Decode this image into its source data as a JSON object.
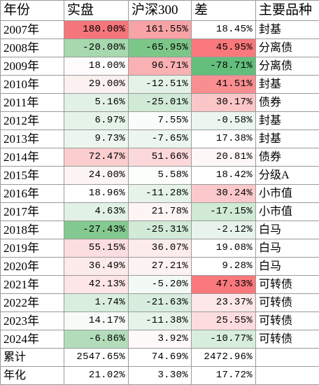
{
  "table": {
    "headers": [
      "年份",
      "实盘",
      "沪深300",
      "差",
      "主要品种"
    ],
    "rows": [
      {
        "year": "2007年",
        "actual": "180.00%",
        "csi300": "161.55%",
        "diff": "18.45%",
        "style": "封基",
        "bg": [
          "#f4767a",
          "#f8a3a6",
          "#ffffff"
        ]
      },
      {
        "year": "2008年",
        "actual": "-20.00%",
        "csi300": "-65.95%",
        "diff": "45.95%",
        "style": "分离债",
        "bg": [
          "#a8d8ae",
          "#7cc688",
          "#f9787c"
        ]
      },
      {
        "year": "2009年",
        "actual": "18.00%",
        "csi300": "96.71%",
        "diff": "-78.71%",
        "style": "分离债",
        "bg": [
          "#fdfbfb",
          "#fab1b4",
          "#63be7b"
        ]
      },
      {
        "year": "2010年",
        "actual": "29.00%",
        "csi300": "-12.51%",
        "diff": "41.51%",
        "style": "封基",
        "bg": [
          "#fcf0f1",
          "#e4f2e7",
          "#f98e91"
        ]
      },
      {
        "year": "2011年",
        "actual": "5.16%",
        "csi300": "-25.01%",
        "diff": "30.17%",
        "style": "债券",
        "bg": [
          "#e2f1e5",
          "#d0ead5",
          "#fbc6c8"
        ]
      },
      {
        "year": "2012年",
        "actual": "6.97%",
        "csi300": "7.55%",
        "diff": "-0.58%",
        "style": "封基",
        "bg": [
          "#e6f3e9",
          "#f9fcfa",
          "#ebf6ee"
        ]
      },
      {
        "year": "2013年",
        "actual": "9.73%",
        "csi300": "-7.65%",
        "diff": "17.38%",
        "style": "封基",
        "bg": [
          "#ecf6ef",
          "#ebf6ee",
          "#ffffff"
        ]
      },
      {
        "year": "2014年",
        "actual": "72.47%",
        "csi300": "51.66%",
        "diff": "20.81%",
        "style": "债券",
        "bg": [
          "#fbcdcf",
          "#fcd8da",
          "#fef7f7"
        ]
      },
      {
        "year": "2015年",
        "actual": "24.00%",
        "csi300": "5.58%",
        "diff": "18.42%",
        "style": "分级A",
        "bg": [
          "#fdf5f5",
          "#fcfefc",
          "#ffffff"
        ]
      },
      {
        "year": "2016年",
        "actual": "18.96%",
        "csi300": "-11.28%",
        "diff": "30.24%",
        "style": "小市值",
        "bg": [
          "#ffffff",
          "#e6f3e9",
          "#fbc9cb"
        ]
      },
      {
        "year": "2017年",
        "actual": "4.63%",
        "csi300": "21.78%",
        "diff": "-17.15%",
        "style": "小市值",
        "bg": [
          "#e2f1e5",
          "#fdf4f5",
          "#d0ead5"
        ]
      },
      {
        "year": "2018年",
        "actual": "-27.43%",
        "csi300": "-25.31%",
        "diff": "-2.12%",
        "style": "白马",
        "bg": [
          "#84c990",
          "#d2ebd7",
          "#e8f4eb"
        ]
      },
      {
        "year": "2019年",
        "actual": "55.15%",
        "csi300": "36.07%",
        "diff": "19.08%",
        "style": "白马",
        "bg": [
          "#fcdde0",
          "#fdecec",
          "#ffffff"
        ]
      },
      {
        "year": "2020年",
        "actual": "36.49%",
        "csi300": "27.21%",
        "diff": "9.28%",
        "style": "白马",
        "bg": [
          "#fdebec",
          "#fdf2f3",
          "#ffffff"
        ]
      },
      {
        "year": "2021年",
        "actual": "42.13%",
        "csi300": "-5.20%",
        "diff": "47.33%",
        "style": "可转债",
        "bg": [
          "#fde6e7",
          "#f3faf5",
          "#f9787c"
        ]
      },
      {
        "year": "2022年",
        "actual": "1.74%",
        "csi300": "-21.63%",
        "diff": "23.37%",
        "style": "可转债",
        "bg": [
          "#d9eedd",
          "#d8edde",
          "#fde7e8"
        ]
      },
      {
        "year": "2023年",
        "actual": "14.17%",
        "csi300": "-11.38%",
        "diff": "25.55%",
        "style": "可转债",
        "bg": [
          "#f7fbf8",
          "#e6f3e9",
          "#fcdcde"
        ]
      },
      {
        "year": "2024年",
        "actual": "-6.86%",
        "csi300": "3.92%",
        "diff": "-10.77%",
        "style": "可转债",
        "bg": [
          "#b3dcba",
          "#fdf9f9",
          "#d8eedd"
        ]
      }
    ],
    "summary": [
      {
        "year": "累计",
        "actual": "2547.65%",
        "csi300": "74.69%",
        "diff": "2472.96%",
        "style": ""
      },
      {
        "year": "年化",
        "actual": "21.02%",
        "csi300": "3.30%",
        "diff": "17.72%",
        "style": ""
      }
    ]
  }
}
